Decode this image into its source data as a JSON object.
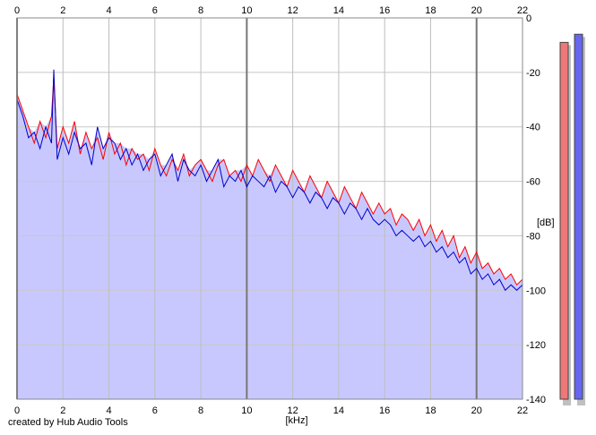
{
  "chart_data": {
    "type": "area",
    "xlabel": "[kHz]",
    "ylabel": "[dB]",
    "xlim": [
      0,
      22
    ],
    "ylim": [
      -140,
      0
    ],
    "x_ticks": [
      0,
      2,
      4,
      6,
      8,
      10,
      12,
      14,
      16,
      18,
      20,
      22
    ],
    "y_ticks": [
      0,
      -20,
      -40,
      -60,
      -80,
      -100,
      -120,
      -140
    ],
    "grid": true,
    "series": [
      {
        "color": "#ff0000",
        "x": [
          0.0,
          0.25,
          0.5,
          0.75,
          1.0,
          1.25,
          1.5,
          1.6,
          1.75,
          2.0,
          2.25,
          2.5,
          2.75,
          3.0,
          3.25,
          3.5,
          3.75,
          4.0,
          4.25,
          4.5,
          4.75,
          5.0,
          5.25,
          5.5,
          5.75,
          6.0,
          6.25,
          6.5,
          6.75,
          7.0,
          7.25,
          7.5,
          7.75,
          8.0,
          8.25,
          8.5,
          8.75,
          9.0,
          9.25,
          9.5,
          9.75,
          10.0,
          10.25,
          10.5,
          10.75,
          11.0,
          11.25,
          11.5,
          11.75,
          12.0,
          12.25,
          12.5,
          12.75,
          13.0,
          13.25,
          13.5,
          13.75,
          14.0,
          14.25,
          14.5,
          14.75,
          15.0,
          15.25,
          15.5,
          15.75,
          16.0,
          16.25,
          16.5,
          16.75,
          17.0,
          17.25,
          17.5,
          17.75,
          18.0,
          18.25,
          18.5,
          18.75,
          19.0,
          19.25,
          19.5,
          19.75,
          20.0,
          20.25,
          20.5,
          20.75,
          21.0,
          21.25,
          21.5,
          21.75,
          22.0
        ],
        "values": [
          -28,
          -34,
          -40,
          -46,
          -38,
          -44,
          -36,
          -22,
          -48,
          -40,
          -46,
          -38,
          -50,
          -42,
          -48,
          -44,
          -52,
          -42,
          -50,
          -46,
          -54,
          -48,
          -52,
          -50,
          -56,
          -48,
          -54,
          -58,
          -52,
          -56,
          -50,
          -58,
          -54,
          -52,
          -56,
          -60,
          -54,
          -52,
          -58,
          -56,
          -60,
          -54,
          -58,
          -52,
          -56,
          -60,
          -54,
          -58,
          -62,
          -56,
          -60,
          -64,
          -58,
          -62,
          -66,
          -60,
          -64,
          -68,
          -62,
          -66,
          -70,
          -64,
          -68,
          -72,
          -68,
          -72,
          -70,
          -76,
          -72,
          -74,
          -78,
          -74,
          -80,
          -76,
          -82,
          -78,
          -84,
          -80,
          -88,
          -84,
          -90,
          -86,
          -92,
          -90,
          -94,
          -92,
          -96,
          -94,
          -98,
          -96
        ]
      },
      {
        "color": "#0000cc",
        "x": [
          0.0,
          0.25,
          0.5,
          0.75,
          1.0,
          1.25,
          1.5,
          1.6,
          1.75,
          2.0,
          2.25,
          2.5,
          2.75,
          3.0,
          3.25,
          3.5,
          3.75,
          4.0,
          4.25,
          4.5,
          4.75,
          5.0,
          5.25,
          5.5,
          5.75,
          6.0,
          6.25,
          6.5,
          6.75,
          7.0,
          7.25,
          7.5,
          7.75,
          8.0,
          8.25,
          8.5,
          8.75,
          9.0,
          9.25,
          9.5,
          9.75,
          10.0,
          10.25,
          10.5,
          10.75,
          11.0,
          11.25,
          11.5,
          11.75,
          12.0,
          12.25,
          12.5,
          12.75,
          13.0,
          13.25,
          13.5,
          13.75,
          14.0,
          14.25,
          14.5,
          14.75,
          15.0,
          15.25,
          15.5,
          15.75,
          16.0,
          16.25,
          16.5,
          16.75,
          17.0,
          17.25,
          17.5,
          17.75,
          18.0,
          18.25,
          18.5,
          18.75,
          19.0,
          19.25,
          19.5,
          19.75,
          20.0,
          20.25,
          20.5,
          20.75,
          21.0,
          21.25,
          21.5,
          21.75,
          22.0
        ],
        "values": [
          -30,
          -36,
          -44,
          -42,
          -48,
          -40,
          -46,
          -19,
          -52,
          -44,
          -50,
          -42,
          -48,
          -46,
          -54,
          -40,
          -48,
          -44,
          -46,
          -52,
          -48,
          -54,
          -50,
          -56,
          -52,
          -50,
          -58,
          -54,
          -50,
          -60,
          -52,
          -56,
          -58,
          -54,
          -60,
          -56,
          -52,
          -62,
          -58,
          -60,
          -56,
          -62,
          -58,
          -60,
          -62,
          -58,
          -64,
          -60,
          -62,
          -66,
          -62,
          -64,
          -68,
          -64,
          -66,
          -70,
          -66,
          -68,
          -72,
          -68,
          -70,
          -74,
          -70,
          -74,
          -76,
          -74,
          -76,
          -80,
          -78,
          -80,
          -82,
          -80,
          -84,
          -82,
          -86,
          -84,
          -88,
          -86,
          -90,
          -88,
          -94,
          -92,
          -96,
          -94,
          -98,
          -96,
          -100,
          -98,
          -100,
          -98
        ]
      }
    ]
  },
  "meters": {
    "left": {
      "color": "#ee7777",
      "level_db": -9
    },
    "right": {
      "color": "#6666ee",
      "level_db": -6
    }
  },
  "credit": "created by Hub Audio Tools"
}
